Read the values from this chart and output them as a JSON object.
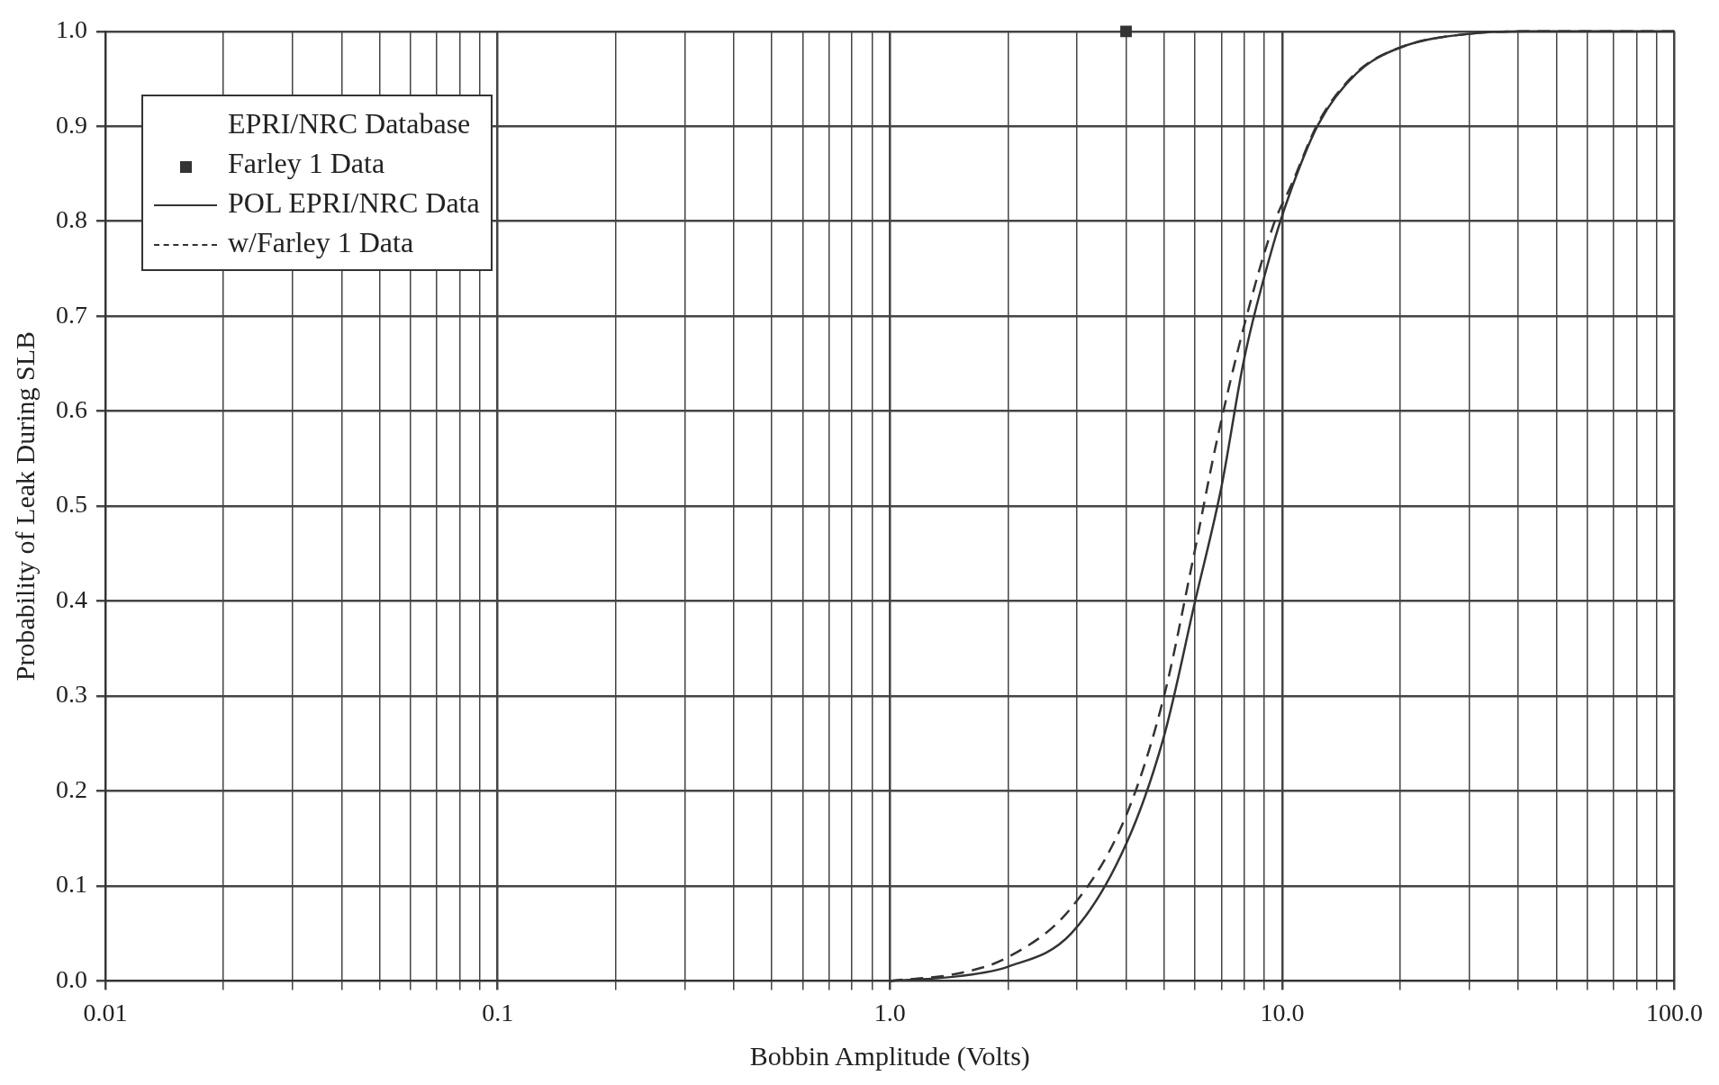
{
  "chart_data": {
    "type": "line",
    "xlabel": "Bobbin Amplitude (Volts)",
    "ylabel": "Probability of Leak During SLB",
    "legend_title": "EPRI/NRC Database",
    "legend": "top left",
    "grid": true,
    "log": "x",
    "xlim": [
      0.01,
      100
    ],
    "xticks": [
      {
        "value": 0.01,
        "label": "0.01"
      },
      {
        "value": 0.02,
        "label": null
      },
      {
        "value": 0.03,
        "label": null
      },
      {
        "value": 0.04,
        "label": null
      },
      {
        "value": 0.05,
        "label": null
      },
      {
        "value": 0.06,
        "label": null
      },
      {
        "value": 0.07,
        "label": null
      },
      {
        "value": 0.08,
        "label": null
      },
      {
        "value": 0.09,
        "label": null
      },
      {
        "value": 0.1,
        "label": "0.1"
      },
      {
        "value": 0.2,
        "label": null
      },
      {
        "value": 0.3,
        "label": null
      },
      {
        "value": 0.4,
        "label": null
      },
      {
        "value": 0.5,
        "label": null
      },
      {
        "value": 0.6,
        "label": null
      },
      {
        "value": 0.7,
        "label": null
      },
      {
        "value": 0.8,
        "label": null
      },
      {
        "value": 0.9,
        "label": null
      },
      {
        "value": 1,
        "label": "1.0"
      },
      {
        "value": 2,
        "label": null
      },
      {
        "value": 3,
        "label": null
      },
      {
        "value": 4,
        "label": null
      },
      {
        "value": 5,
        "label": null
      },
      {
        "value": 6,
        "label": null
      },
      {
        "value": 7,
        "label": null
      },
      {
        "value": 8,
        "label": null
      },
      {
        "value": 9,
        "label": null
      },
      {
        "value": 10,
        "label": "10.0"
      },
      {
        "value": 20,
        "label": null
      },
      {
        "value": 30,
        "label": null
      },
      {
        "value": 40,
        "label": null
      },
      {
        "value": 50,
        "label": null
      },
      {
        "value": 60,
        "label": null
      },
      {
        "value": 70,
        "label": null
      },
      {
        "value": 80,
        "label": null
      },
      {
        "value": 90,
        "label": null
      },
      {
        "value": 100,
        "label": "100.0"
      }
    ],
    "ylim": [
      0,
      1
    ],
    "yticks": [
      {
        "value": 0,
        "label": "0.0"
      },
      {
        "value": 0.1,
        "label": "0.1"
      },
      {
        "value": 0.2,
        "label": "0.2"
      },
      {
        "value": 0.3,
        "label": "0.3"
      },
      {
        "value": 0.4,
        "label": "0.4"
      },
      {
        "value": 0.5,
        "label": "0.5"
      },
      {
        "value": 0.6,
        "label": "0.6"
      },
      {
        "value": 0.7,
        "label": "0.7"
      },
      {
        "value": 0.8,
        "label": "0.8"
      },
      {
        "value": 0.9,
        "label": "0.9"
      },
      {
        "value": 1,
        "label": "1.0"
      }
    ],
    "series": [
      {
        "name": "Farley 1 Data",
        "type": "scatter",
        "marker": "square",
        "color": "#333333",
        "x": [
          4
        ],
        "values": [
          1.0
        ]
      },
      {
        "name": "POL EPRI/NRC Data",
        "marker": "none",
        "line_style": "solid",
        "color": "#333333",
        "x": [
          1,
          1.5,
          2,
          2.9,
          4,
          5,
          6,
          7,
          8,
          9.5,
          10.6,
          12.4,
          15.5,
          20,
          31,
          42,
          100
        ],
        "values": [
          0,
          0.005,
          0.015,
          0.05,
          0.144,
          0.258,
          0.4,
          0.52,
          0.655,
          0.776,
          0.836,
          0.903,
          0.956,
          0.983,
          0.998,
          1,
          1
        ]
      },
      {
        "name": "w/Farley 1 Data",
        "marker": "none",
        "line_style": "dashed",
        "color": "#333333",
        "x": [
          1,
          1.5,
          2,
          2.9,
          4,
          5,
          5.9,
          6.8,
          8,
          9.5,
          10.6,
          12.4,
          15.5,
          20,
          31,
          42,
          100
        ],
        "values": [
          0,
          0.008,
          0.025,
          0.077,
          0.174,
          0.3,
          0.44,
          0.567,
          0.69,
          0.796,
          0.84,
          0.905,
          0.957,
          0.983,
          0.998,
          1,
          1
        ]
      }
    ]
  }
}
